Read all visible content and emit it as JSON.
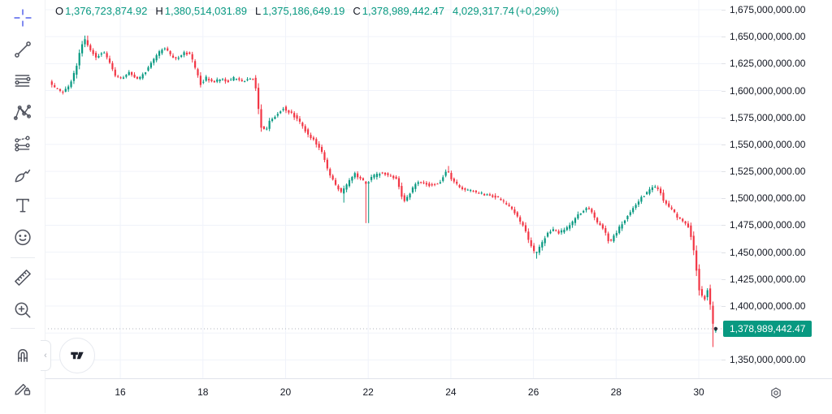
{
  "legend": {
    "open_label": "O",
    "open": "1,376,723,874.92",
    "high_label": "H",
    "high": "1,380,514,031.89",
    "low_label": "L",
    "low": "1,375,186,649.19",
    "close_label": "C",
    "close": "1,378,989,442.47",
    "change": "4,029,317.74",
    "change_pct": "(+0,29%)"
  },
  "toolbar": {
    "tools": [
      {
        "name": "crosshair",
        "selected": true
      },
      {
        "name": "trend-line",
        "selected": false
      },
      {
        "name": "horizontal-lines",
        "selected": false
      },
      {
        "name": "xabcd-pattern",
        "selected": false
      },
      {
        "name": "projection",
        "selected": false
      },
      {
        "name": "brush",
        "selected": false
      },
      {
        "name": "text",
        "selected": false
      },
      {
        "name": "emoji",
        "selected": false
      },
      {
        "name": "ruler",
        "selected": false
      },
      {
        "name": "zoom-in",
        "selected": false
      },
      {
        "name": "magnet",
        "selected": false
      },
      {
        "name": "drawing-lock",
        "selected": false
      }
    ]
  },
  "price_axis": {
    "labels": [
      "1,675,000,000.00",
      "1,650,000,000.00",
      "1,625,000,000.00",
      "1,600,000,000.00",
      "1,575,000,000.00",
      "1,550,000,000.00",
      "1,525,000,000.00",
      "1,500,000,000.00",
      "1,475,000,000.00",
      "1,450,000,000.00",
      "1,425,000,000.00",
      "1,400,000,000.00",
      "1,350,000,000.00"
    ],
    "last_price_tag": "1,378,989,442.47"
  },
  "time_axis": {
    "labels": [
      "16",
      "18",
      "20",
      "22",
      "24",
      "26",
      "28",
      "30"
    ]
  },
  "watermark": "tradingview-logo",
  "colors": {
    "up": "#089981",
    "down": "#f23645",
    "grid": "#f0f3fa",
    "selected_tool": "#7d88f0",
    "icon": "#50535e",
    "price_line": "#b0b4bf",
    "tag_bg": "#089981",
    "text": "#131722"
  },
  "chart_data": {
    "type": "candlestick",
    "x_unit": "day_of_month",
    "price_unit": "millions",
    "x_domain": [
      14.17,
      30.55
    ],
    "y_domain": [
      1333,
      1684
    ],
    "x_ticks": [
      16,
      18,
      20,
      22,
      24,
      26,
      28,
      30
    ],
    "y_ticks": [
      1675,
      1650,
      1625,
      1600,
      1575,
      1550,
      1525,
      1500,
      1475,
      1450,
      1425,
      1400,
      1350
    ],
    "y_grid_extra": [
      1375
    ],
    "candles_per_day": 15,
    "last_candle": {
      "open": 1376723874.92,
      "high": 1380514031.89,
      "low": 1375186649.19,
      "close": 1378989442.47
    },
    "price_path": [
      [
        14.31,
        1608
      ],
      [
        14.47,
        1602
      ],
      [
        14.62,
        1598
      ],
      [
        14.78,
        1604
      ],
      [
        14.94,
        1618
      ],
      [
        15.06,
        1638
      ],
      [
        15.17,
        1648
      ],
      [
        15.29,
        1639
      ],
      [
        15.45,
        1630
      ],
      [
        15.61,
        1637
      ],
      [
        15.76,
        1627
      ],
      [
        15.92,
        1613
      ],
      [
        16.08,
        1611
      ],
      [
        16.24,
        1618
      ],
      [
        16.39,
        1611
      ],
      [
        16.55,
        1613
      ],
      [
        16.71,
        1621
      ],
      [
        16.94,
        1634
      ],
      [
        17.1,
        1640
      ],
      [
        17.26,
        1632
      ],
      [
        17.42,
        1629
      ],
      [
        17.57,
        1636
      ],
      [
        17.73,
        1633
      ],
      [
        17.85,
        1620
      ],
      [
        17.97,
        1606
      ],
      [
        18.12,
        1612
      ],
      [
        18.28,
        1607
      ],
      [
        18.44,
        1611
      ],
      [
        18.6,
        1608
      ],
      [
        18.79,
        1612
      ],
      [
        18.99,
        1609
      ],
      [
        19.19,
        1611
      ],
      [
        19.28,
        1612
      ],
      [
        19.36,
        1588
      ],
      [
        19.44,
        1566
      ],
      [
        19.54,
        1562
      ],
      [
        19.66,
        1573
      ],
      [
        19.81,
        1577
      ],
      [
        19.97,
        1584
      ],
      [
        20.17,
        1579
      ],
      [
        20.37,
        1571
      ],
      [
        20.56,
        1560
      ],
      [
        20.76,
        1552
      ],
      [
        20.92,
        1543
      ],
      [
        21.07,
        1525
      ],
      [
        21.23,
        1512
      ],
      [
        21.39,
        1505
      ],
      [
        21.55,
        1515
      ],
      [
        21.7,
        1523
      ],
      [
        21.86,
        1518
      ],
      [
        21.98,
        1513
      ],
      [
        22.14,
        1520
      ],
      [
        22.33,
        1524
      ],
      [
        22.53,
        1521
      ],
      [
        22.72,
        1518
      ],
      [
        22.88,
        1497
      ],
      [
        23.04,
        1505
      ],
      [
        23.2,
        1515
      ],
      [
        23.39,
        1513
      ],
      [
        23.59,
        1512
      ],
      [
        23.79,
        1516
      ],
      [
        23.94,
        1528
      ],
      [
        24.06,
        1517
      ],
      [
        24.22,
        1511
      ],
      [
        24.42,
        1508
      ],
      [
        24.61,
        1506
      ],
      [
        24.81,
        1504
      ],
      [
        25.01,
        1502
      ],
      [
        25.2,
        1500
      ],
      [
        25.4,
        1494
      ],
      [
        25.6,
        1486
      ],
      [
        25.79,
        1474
      ],
      [
        25.95,
        1458
      ],
      [
        26.07,
        1448
      ],
      [
        26.19,
        1455
      ],
      [
        26.34,
        1466
      ],
      [
        26.5,
        1471
      ],
      [
        26.66,
        1468
      ],
      [
        26.81,
        1472
      ],
      [
        26.97,
        1477
      ],
      [
        27.13,
        1485
      ],
      [
        27.29,
        1490
      ],
      [
        27.4,
        1489
      ],
      [
        27.56,
        1478
      ],
      [
        27.72,
        1472
      ],
      [
        27.88,
        1458
      ],
      [
        28.0,
        1466
      ],
      [
        28.15,
        1475
      ],
      [
        28.31,
        1484
      ],
      [
        28.47,
        1493
      ],
      [
        28.62,
        1500
      ],
      [
        28.78,
        1505
      ],
      [
        28.94,
        1511
      ],
      [
        29.06,
        1508
      ],
      [
        29.21,
        1496
      ],
      [
        29.37,
        1490
      ],
      [
        29.53,
        1482
      ],
      [
        29.69,
        1477
      ],
      [
        29.8,
        1473
      ],
      [
        29.92,
        1450
      ],
      [
        30.04,
        1415
      ],
      [
        30.16,
        1405
      ],
      [
        30.26,
        1418
      ],
      [
        30.34,
        1390
      ],
      [
        30.41,
        1379
      ]
    ],
    "wick_events": [
      {
        "day": 15.17,
        "high": 1651
      },
      {
        "day": 21.42,
        "low": 1496
      },
      {
        "day": 21.98,
        "low": 1477
      },
      {
        "day": 23.94,
        "high": 1530
      },
      {
        "day": 26.07,
        "low": 1444
      },
      {
        "day": 30.36,
        "low": 1362
      }
    ]
  }
}
